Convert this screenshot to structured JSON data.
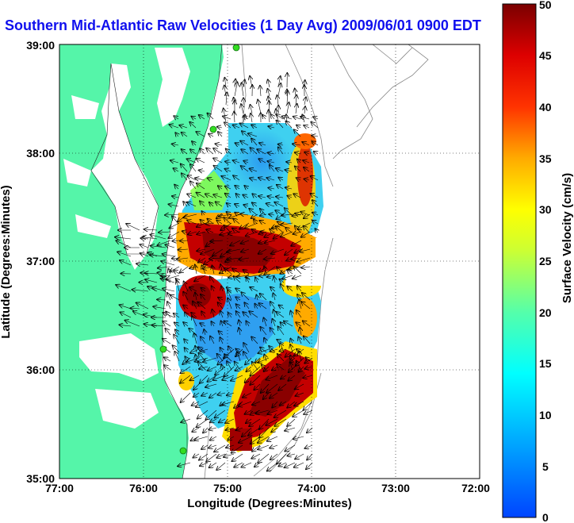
{
  "title": "Southern Mid-Atlantic Raw Velocities (1 Day Avg) 2009/06/01 0900 EDT",
  "x_axis": {
    "label": "Longitude (Degrees:Minutes)",
    "ticks": [
      "77:00",
      "76:00",
      "75:00",
      "74:00",
      "73:00",
      "72:00"
    ]
  },
  "y_axis": {
    "label": "Latitude (Degrees:Minutes)",
    "ticks": [
      "39:00",
      "38:00",
      "37:00",
      "36:00",
      "35:00"
    ]
  },
  "colorbar": {
    "label": "Surface Velocity (cm/s)",
    "min": 0,
    "max": 50,
    "ticks": [
      "50",
      "45",
      "40",
      "35",
      "30",
      "25",
      "20",
      "15",
      "10",
      "5",
      "0"
    ]
  },
  "colors": {
    "land": "#55f5a9",
    "water": "#ffffff",
    "title": "#1010ee",
    "station": "#33dd22",
    "bathymetry": "#888888"
  }
}
